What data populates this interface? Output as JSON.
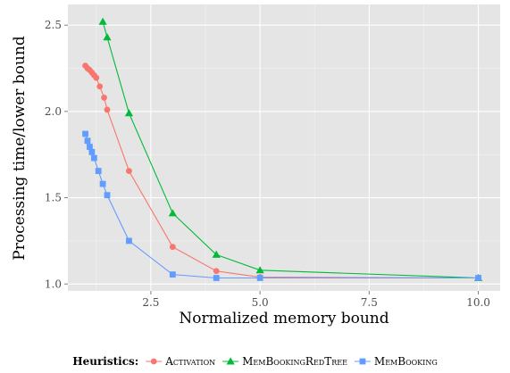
{
  "chart_data": {
    "type": "line",
    "xlabel": "Normalized memory bound",
    "ylabel": "Processing time/lower bound",
    "xlim": [
      0.6,
      10.5
    ],
    "ylim": [
      0.96,
      2.62
    ],
    "xticks": [
      2.5,
      5.0,
      7.5,
      10.0
    ],
    "xtick_labels": [
      "2.5",
      "5.0",
      "7.5",
      "10.0"
    ],
    "yticks": [
      1.0,
      1.5,
      2.0,
      2.5
    ],
    "ytick_labels": [
      "1.0",
      "1.5",
      "2.0",
      "2.5"
    ],
    "grid": true,
    "legend": {
      "title": "Heuristics:",
      "position": "bottom"
    },
    "series": [
      {
        "name": "Activation",
        "color": "#f8766d",
        "marker": "circle",
        "x": [
          1.0,
          1.05,
          1.1,
          1.15,
          1.2,
          1.25,
          1.33,
          1.43,
          1.5,
          2.0,
          3.0,
          4.0,
          5.0,
          10.0
        ],
        "y": [
          2.265,
          2.25,
          2.24,
          2.225,
          2.21,
          2.195,
          2.145,
          2.08,
          2.01,
          1.655,
          1.215,
          1.075,
          1.04,
          1.035
        ]
      },
      {
        "name": "MemBookingRedTree",
        "color": "#00ba38",
        "marker": "triangle",
        "x": [
          1.4,
          1.5,
          2.0,
          3.0,
          4.0,
          5.0,
          10.0
        ],
        "y": [
          2.52,
          2.43,
          1.99,
          1.41,
          1.17,
          1.08,
          1.035
        ]
      },
      {
        "name": "MemBooking",
        "color": "#619cff",
        "marker": "square",
        "x": [
          1.0,
          1.05,
          1.1,
          1.15,
          1.2,
          1.3,
          1.4,
          1.5,
          2.0,
          3.0,
          4.0,
          5.0,
          10.0
        ],
        "y": [
          1.87,
          1.83,
          1.795,
          1.765,
          1.73,
          1.655,
          1.58,
          1.515,
          1.25,
          1.055,
          1.035,
          1.035,
          1.035
        ]
      }
    ]
  }
}
